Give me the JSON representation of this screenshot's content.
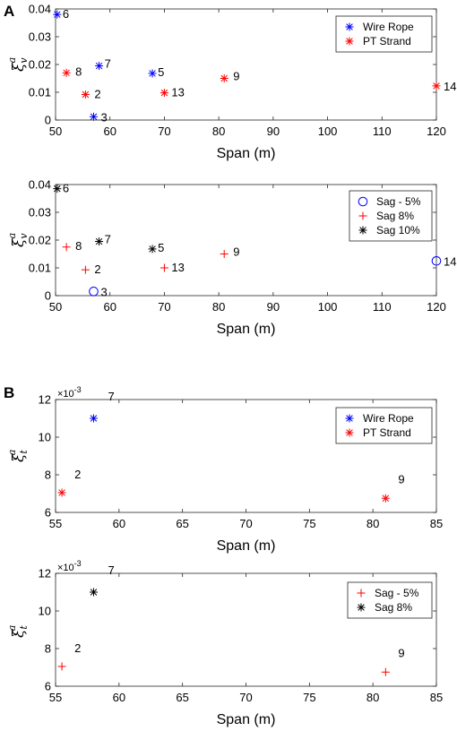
{
  "panel_labels": [
    "A",
    "B"
  ],
  "chart_data": [
    {
      "type": "scatter",
      "xlabel": "Span (m)",
      "ylabel": "ξ",
      "ylabel_sup": "a",
      "ylabel_sub": "v",
      "xlim": [
        50,
        120
      ],
      "ylim": [
        0,
        0.04
      ],
      "xticks": [
        "50",
        "60",
        "70",
        "80",
        "90",
        "100",
        "110",
        "120"
      ],
      "yticks": [
        "0",
        "0.01",
        "0.02",
        "0.03",
        "0.04"
      ],
      "legend_position": "top-right",
      "series": [
        {
          "name": "Wire Rope",
          "marker": "star",
          "color": "#0000ff",
          "points": [
            {
              "x": 50.3,
              "y": 0.038,
              "label": "6"
            },
            {
              "x": 58.0,
              "y": 0.0195,
              "label": "7"
            },
            {
              "x": 67.8,
              "y": 0.0168,
              "label": "5"
            },
            {
              "x": 57.0,
              "y": 0.0012,
              "label": "3"
            }
          ]
        },
        {
          "name": "PT Strand",
          "marker": "star",
          "color": "#ff0000",
          "points": [
            {
              "x": 52.0,
              "y": 0.017,
              "label": "8"
            },
            {
              "x": 55.5,
              "y": 0.0092,
              "label": "2"
            },
            {
              "x": 70.0,
              "y": 0.0098,
              "label": "13"
            },
            {
              "x": 81.0,
              "y": 0.015,
              "label": "9"
            },
            {
              "x": 120.0,
              "y": 0.0123,
              "label": "14"
            }
          ]
        }
      ]
    },
    {
      "type": "scatter",
      "xlabel": "Span (m)",
      "ylabel": "ξ",
      "ylabel_sup": "a",
      "ylabel_sub": "v",
      "xlim": [
        50,
        120
      ],
      "ylim": [
        0,
        0.04
      ],
      "xticks": [
        "50",
        "60",
        "70",
        "80",
        "90",
        "100",
        "110",
        "120"
      ],
      "yticks": [
        "0",
        "0.01",
        "0.02",
        "0.03",
        "0.04"
      ],
      "legend_position": "top-right",
      "series": [
        {
          "name": "Sag - 5%",
          "marker": "circle",
          "color": "#0000ff",
          "points": [
            {
              "x": 57.0,
              "y": 0.0015,
              "label": "3"
            },
            {
              "x": 120.0,
              "y": 0.0125,
              "label": "14"
            }
          ]
        },
        {
          "name": "Sag 8%",
          "marker": "plus",
          "color": "#ff0000",
          "points": [
            {
              "x": 52.0,
              "y": 0.0175,
              "label": "8"
            },
            {
              "x": 55.5,
              "y": 0.0093,
              "label": "2"
            },
            {
              "x": 70.0,
              "y": 0.01,
              "label": "13"
            },
            {
              "x": 81.0,
              "y": 0.015,
              "label": "9"
            }
          ]
        },
        {
          "name": "Sag 10%",
          "marker": "star",
          "color": "#000000",
          "points": [
            {
              "x": 50.3,
              "y": 0.0385,
              "label": "6"
            },
            {
              "x": 58.0,
              "y": 0.0195,
              "label": "7"
            },
            {
              "x": 67.8,
              "y": 0.0168,
              "label": "5"
            }
          ]
        }
      ]
    },
    {
      "type": "scatter",
      "xlabel": "Span (m)",
      "ylabel": "ξ",
      "ylabel_sup": "a",
      "ylabel_sub": "t",
      "y_exponent": "×10",
      "y_exponent_power": "-3",
      "xlim": [
        55,
        85
      ],
      "ylim": [
        6,
        12
      ],
      "xticks": [
        "55",
        "60",
        "65",
        "70",
        "75",
        "80",
        "85"
      ],
      "yticks": [
        "6",
        "8",
        "10",
        "12"
      ],
      "legend_position": "top-right",
      "series": [
        {
          "name": "Wire Rope",
          "marker": "star",
          "color": "#0000ff",
          "points": [
            {
              "x": 58.0,
              "y": 11.0,
              "label": "7"
            }
          ]
        },
        {
          "name": "PT Strand",
          "marker": "star",
          "color": "#ff0000",
          "points": [
            {
              "x": 55.5,
              "y": 7.05,
              "label": "2"
            },
            {
              "x": 81.0,
              "y": 6.75,
              "label": "9"
            }
          ]
        }
      ]
    },
    {
      "type": "scatter",
      "xlabel": "Span (m)",
      "ylabel": "ξ",
      "ylabel_sup": "a",
      "ylabel_sub": "t",
      "y_exponent": "×10",
      "y_exponent_power": "-3",
      "xlim": [
        55,
        85
      ],
      "ylim": [
        6,
        12
      ],
      "xticks": [
        "55",
        "60",
        "65",
        "70",
        "75",
        "80",
        "85"
      ],
      "yticks": [
        "6",
        "8",
        "10",
        "12"
      ],
      "legend_position": "top-right",
      "series": [
        {
          "name": "Sag - 5%",
          "marker": "plus",
          "color": "#ff0000",
          "points": [
            {
              "x": 55.5,
              "y": 7.05,
              "label": "2"
            },
            {
              "x": 81.0,
              "y": 6.75,
              "label": "9"
            }
          ]
        },
        {
          "name": "Sag 8%",
          "marker": "star",
          "color": "#000000",
          "points": [
            {
              "x": 58.0,
              "y": 11.0,
              "label": "7"
            }
          ]
        }
      ]
    }
  ]
}
